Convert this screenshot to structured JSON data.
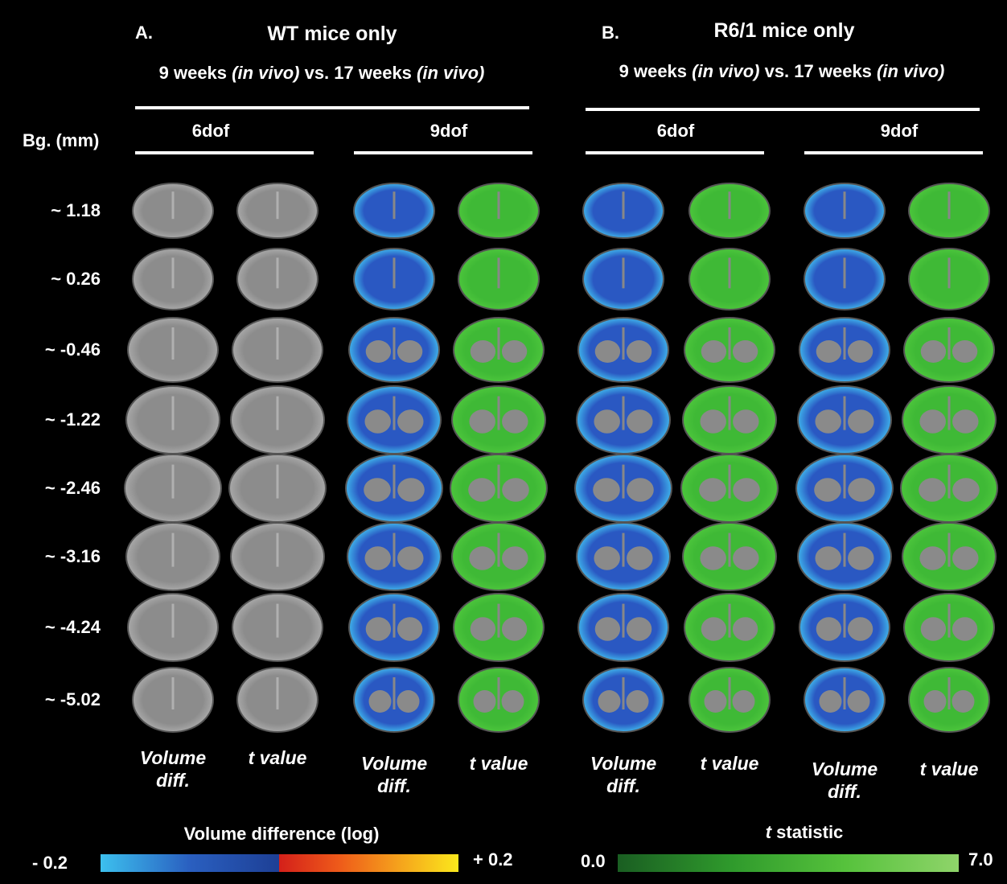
{
  "panels": [
    {
      "label": "A.",
      "title": "WT mice only",
      "subtitle": [
        "9 weeks ",
        "(in vivo)",
        " vs. 17 weeks ",
        "(in vivo)"
      ],
      "groups": [
        "6dof",
        "9dof"
      ],
      "column_labels": [
        "Volume diff.",
        "t value",
        "Volume diff.",
        "t value"
      ]
    },
    {
      "label": "B.",
      "title": "R6/1 mice only",
      "subtitle": [
        "9 weeks ",
        "(in vivo)",
        " vs. 17 weeks ",
        "(in vivo)"
      ],
      "groups": [
        "6dof",
        "9dof"
      ],
      "column_labels": [
        "Volume diff.",
        "t value",
        "Volume diff.",
        "t value"
      ]
    }
  ],
  "row_header": "Bg. (mm)",
  "rows": [
    "~ 1.18",
    "~ 0.26",
    "~ -0.46",
    "~ -1.22",
    "~ -2.46",
    "~ -3.16",
    "~ -4.24",
    "~ -5.02"
  ],
  "colorbars": [
    {
      "title": "Volume difference (log)",
      "min": "- 0.2",
      "max": "+ 0.2"
    },
    {
      "title_italic": "t",
      "title": " statistic",
      "min": "0.0",
      "max": "7.0"
    }
  ]
}
